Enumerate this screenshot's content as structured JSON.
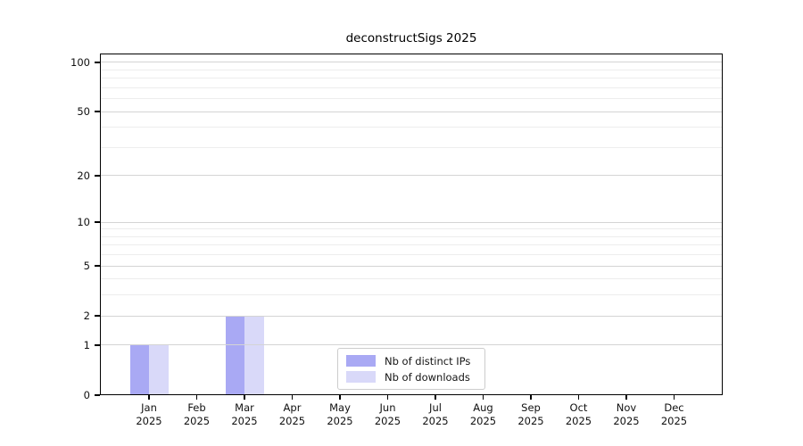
{
  "chart_data": {
    "type": "bar",
    "title": "deconstructSigs 2025",
    "x": [
      {
        "month": "Jan",
        "year": "2025"
      },
      {
        "month": "Feb",
        "year": "2025"
      },
      {
        "month": "Mar",
        "year": "2025"
      },
      {
        "month": "Apr",
        "year": "2025"
      },
      {
        "month": "May",
        "year": "2025"
      },
      {
        "month": "Jun",
        "year": "2025"
      },
      {
        "month": "Jul",
        "year": "2025"
      },
      {
        "month": "Aug",
        "year": "2025"
      },
      {
        "month": "Sep",
        "year": "2025"
      },
      {
        "month": "Oct",
        "year": "2025"
      },
      {
        "month": "Nov",
        "year": "2025"
      },
      {
        "month": "Dec",
        "year": "2025"
      }
    ],
    "series": [
      {
        "key": "distinct-ips",
        "name": "Nb of distinct IPs",
        "color": "#a9a9f4",
        "values": [
          1,
          0,
          2,
          0,
          0,
          0,
          0,
          0,
          0,
          0,
          0,
          0
        ]
      },
      {
        "key": "downloads",
        "name": "Nb of downloads",
        "color": "#d9d9f9",
        "values": [
          1,
          0,
          2,
          0,
          0,
          0,
          0,
          0,
          0,
          0,
          0,
          0
        ]
      }
    ],
    "y_axis": {
      "scale": "log1p",
      "ticks": [
        100,
        50,
        20,
        10,
        5,
        2,
        1,
        0
      ],
      "minor_gridlines": [
        90,
        80,
        70,
        60,
        40,
        30,
        9,
        8,
        7,
        6,
        4,
        3
      ],
      "ylim": [
        0,
        113
      ]
    },
    "x_axis": {
      "label_format": "month over year"
    },
    "legend": {
      "position": "lower-center"
    },
    "colors": {
      "grid_major": "#d4d4d4",
      "grid_minor": "#ededed",
      "axis": "#000000",
      "text": "#111111",
      "background": "#ffffff"
    }
  }
}
